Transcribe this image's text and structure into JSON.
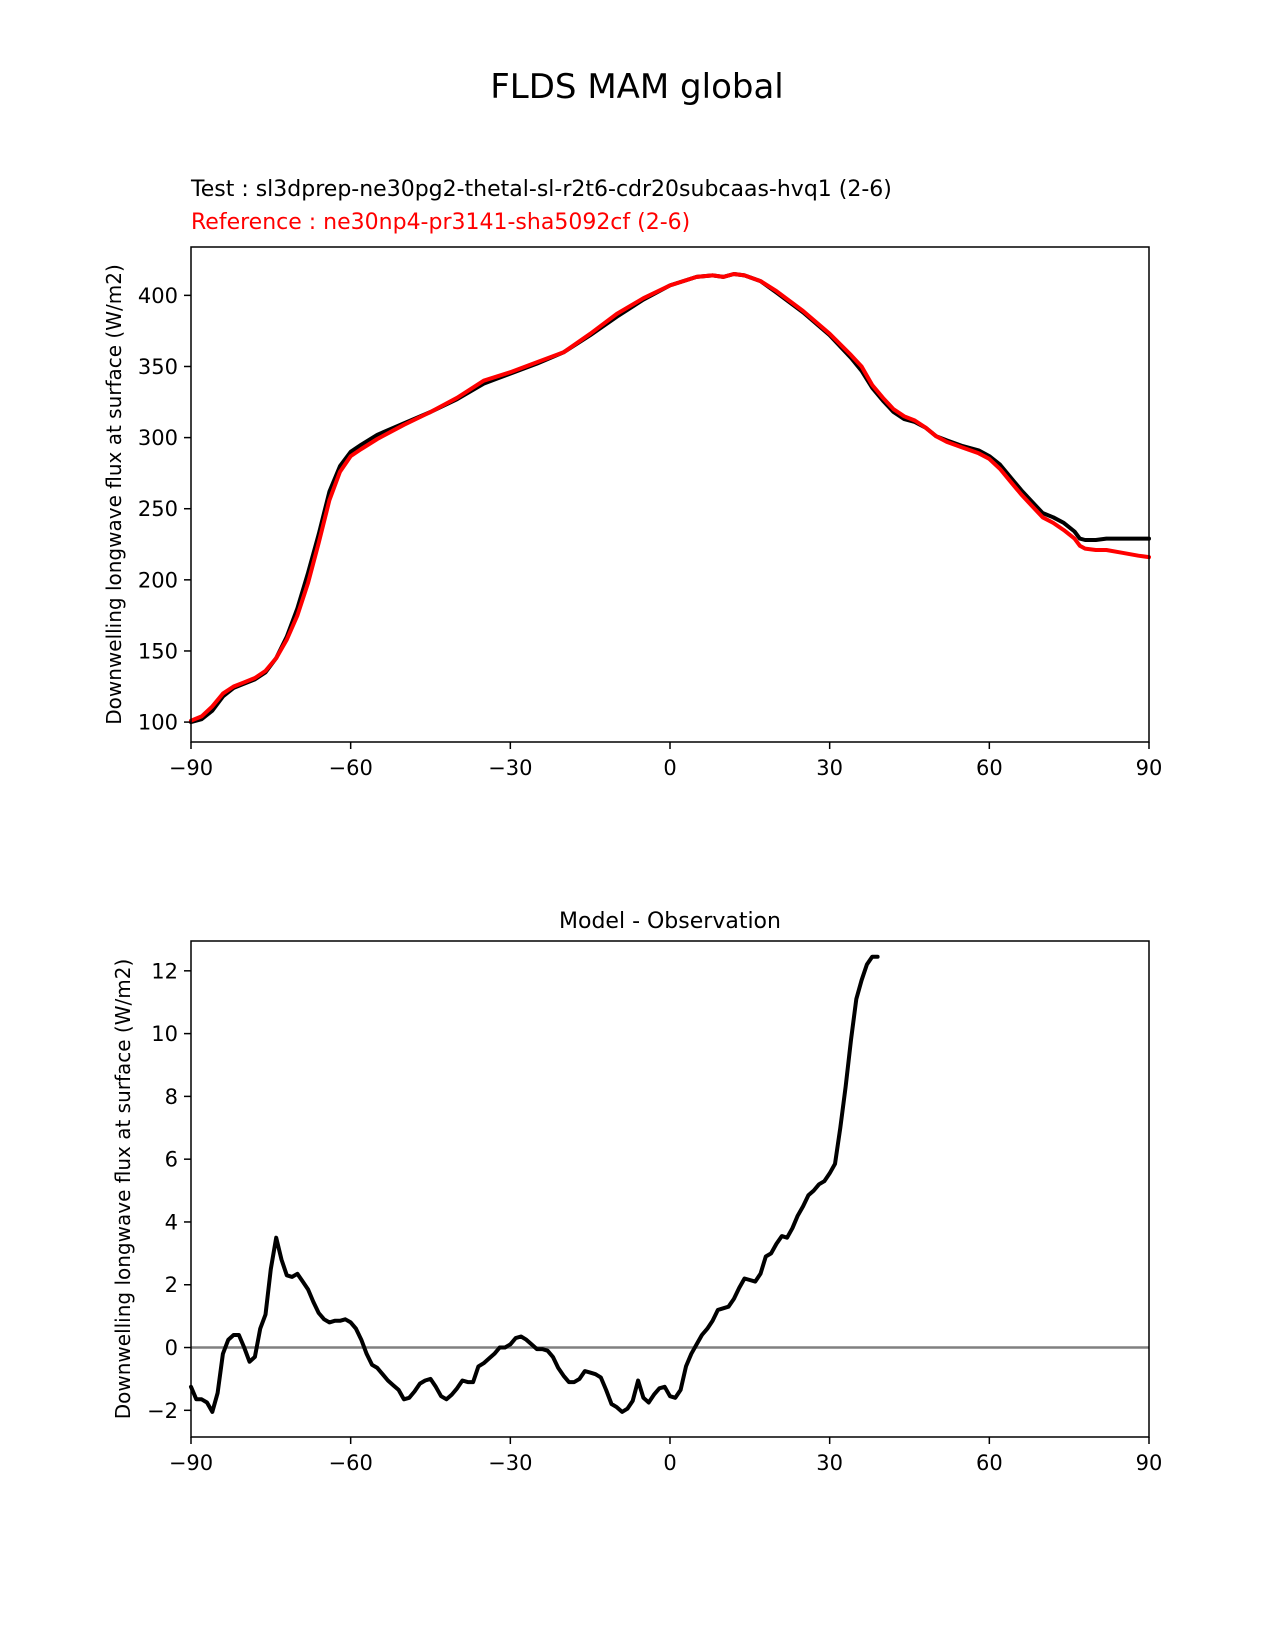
{
  "figure": {
    "title": "FLDS MAM global"
  },
  "chart_data": [
    {
      "type": "line",
      "title_lines": [
        {
          "text": "Test : sl3dprep-ne30pg2-thetal-sl-r2t6-cdr20subcaas-hvq1 (2-6)",
          "color": "#000000"
        },
        {
          "text": "Reference : ne30np4-pr3141-sha5092cf (2-6)",
          "color": "#ff0000"
        }
      ],
      "xlabel": "",
      "ylabel": "Downwelling longwave flux at surface (W/m2)",
      "xlim": [
        -90,
        90
      ],
      "ylim": [
        86,
        434
      ],
      "xticks": [
        -90,
        -60,
        -30,
        0,
        30,
        60,
        90
      ],
      "xtick_labels": [
        "−90",
        "−60",
        "−30",
        "0",
        "30",
        "60",
        "90"
      ],
      "yticks": [
        100,
        150,
        200,
        250,
        300,
        350,
        400
      ],
      "ytick_labels": [
        "100",
        "150",
        "200",
        "250",
        "300",
        "350",
        "400"
      ],
      "grid": false,
      "series": [
        {
          "color": "#000000",
          "points": [
            [
              -90,
              100
            ],
            [
              -88,
              102
            ],
            [
              -86,
              108
            ],
            [
              -84,
              118
            ],
            [
              -82,
              124
            ],
            [
              -80,
              127
            ],
            [
              -78,
              130
            ],
            [
              -76,
              135
            ],
            [
              -74,
              145
            ],
            [
              -72,
              160
            ],
            [
              -70,
              180
            ],
            [
              -68,
              205
            ],
            [
              -66,
              232
            ],
            [
              -64,
              262
            ],
            [
              -62,
              280
            ],
            [
              -60,
              290
            ],
            [
              -58,
              295
            ],
            [
              -55,
              302
            ],
            [
              -50,
              310
            ],
            [
              -45,
              318
            ],
            [
              -40,
              327
            ],
            [
              -35,
              338
            ],
            [
              -30,
              345
            ],
            [
              -25,
              352
            ],
            [
              -20,
              360
            ],
            [
              -15,
              372
            ],
            [
              -10,
              385
            ],
            [
              -5,
              397
            ],
            [
              0,
              407
            ],
            [
              5,
              413
            ],
            [
              8,
              414
            ],
            [
              10,
              413
            ],
            [
              12,
              415
            ],
            [
              14,
              414
            ],
            [
              17,
              410
            ],
            [
              20,
              402
            ],
            [
              25,
              388
            ],
            [
              30,
              372
            ],
            [
              34,
              356
            ],
            [
              36,
              347
            ],
            [
              38,
              335
            ],
            [
              40,
              326
            ],
            [
              42,
              318
            ],
            [
              44,
              313
            ],
            [
              46,
              311
            ],
            [
              48,
              307
            ],
            [
              50,
              301
            ],
            [
              52,
              298
            ],
            [
              55,
              294
            ],
            [
              58,
              291
            ],
            [
              60,
              287
            ],
            [
              62,
              281
            ],
            [
              64,
              272
            ],
            [
              66,
              263
            ],
            [
              68,
              255
            ],
            [
              70,
              247
            ],
            [
              72,
              244
            ],
            [
              74,
              240
            ],
            [
              76,
              234
            ],
            [
              77,
              229
            ],
            [
              78,
              228
            ],
            [
              80,
              228
            ],
            [
              82,
              229
            ],
            [
              85,
              229
            ],
            [
              88,
              229
            ],
            [
              90,
              229
            ]
          ]
        },
        {
          "color": "#ff0000",
          "points": [
            [
              -90,
              101
            ],
            [
              -88,
              104
            ],
            [
              -86,
              111
            ],
            [
              -84,
              120
            ],
            [
              -82,
              125
            ],
            [
              -80,
              128
            ],
            [
              -78,
              131
            ],
            [
              -76,
              136
            ],
            [
              -74,
              145
            ],
            [
              -72,
              158
            ],
            [
              -70,
              175
            ],
            [
              -68,
              198
            ],
            [
              -66,
              226
            ],
            [
              -64,
              256
            ],
            [
              -62,
              276
            ],
            [
              -60,
              287
            ],
            [
              -58,
              292
            ],
            [
              -55,
              299
            ],
            [
              -50,
              309
            ],
            [
              -45,
              318
            ],
            [
              -40,
              328
            ],
            [
              -35,
              340
            ],
            [
              -30,
              346
            ],
            [
              -25,
              353
            ],
            [
              -20,
              360
            ],
            [
              -15,
              373
            ],
            [
              -10,
              387
            ],
            [
              -5,
              398
            ],
            [
              0,
              407
            ],
            [
              5,
              413
            ],
            [
              8,
              414
            ],
            [
              10,
              413
            ],
            [
              12,
              415
            ],
            [
              14,
              414
            ],
            [
              17,
              410
            ],
            [
              20,
              403
            ],
            [
              25,
              389
            ],
            [
              30,
              373
            ],
            [
              34,
              358
            ],
            [
              36,
              350
            ],
            [
              38,
              337
            ],
            [
              40,
              328
            ],
            [
              42,
              320
            ],
            [
              44,
              315
            ],
            [
              46,
              312
            ],
            [
              48,
              307
            ],
            [
              50,
              301
            ],
            [
              52,
              297
            ],
            [
              55,
              293
            ],
            [
              58,
              289
            ],
            [
              60,
              285
            ],
            [
              62,
              278
            ],
            [
              64,
              269
            ],
            [
              66,
              260
            ],
            [
              68,
              252
            ],
            [
              70,
              244
            ],
            [
              72,
              240
            ],
            [
              74,
              235
            ],
            [
              76,
              229
            ],
            [
              77,
              224
            ],
            [
              78,
              222
            ],
            [
              80,
              221
            ],
            [
              82,
              221
            ],
            [
              85,
              219
            ],
            [
              88,
              217
            ],
            [
              90,
              216
            ]
          ]
        }
      ]
    },
    {
      "type": "line",
      "title": "Model - Observation",
      "xlabel": "",
      "ylabel": "Downwelling longwave flux at surface (W/m2)",
      "xlim": [
        -90,
        90
      ],
      "ylim": [
        -2.85,
        12.95
      ],
      "xticks": [
        -90,
        -60,
        -30,
        0,
        30,
        60,
        90
      ],
      "xtick_labels": [
        "−90",
        "−60",
        "−30",
        "0",
        "30",
        "60",
        "90"
      ],
      "yticks": [
        -2,
        0,
        2,
        4,
        6,
        8,
        10,
        12
      ],
      "ytick_labels": [
        "−2",
        "0",
        "2",
        "4",
        "6",
        "8",
        "10",
        "12"
      ],
      "grid": false,
      "zero_line_color": "#808080",
      "series": [
        {
          "color": "#000000",
          "points": [
            [
              -90,
              -1.25
            ],
            [
              -89,
              -1.65
            ],
            [
              -88,
              -1.65
            ],
            [
              -87,
              -1.75
            ],
            [
              -86,
              -2.05
            ],
            [
              -85,
              -1.45
            ],
            [
              -84,
              -0.2
            ],
            [
              -83,
              0.25
            ],
            [
              -82,
              0.4
            ],
            [
              -81,
              0.4
            ],
            [
              -80,
              0.0
            ],
            [
              -79,
              -0.45
            ],
            [
              -78,
              -0.3
            ],
            [
              -77,
              0.6
            ],
            [
              -76,
              1.05
            ],
            [
              -75,
              2.5
            ],
            [
              -74,
              3.5
            ],
            [
              -73,
              2.8
            ],
            [
              -72,
              2.3
            ],
            [
              -71,
              2.25
            ],
            [
              -70,
              2.35
            ],
            [
              -69,
              2.1
            ],
            [
              -68,
              1.85
            ],
            [
              -67,
              1.45
            ],
            [
              -66,
              1.1
            ],
            [
              -65,
              0.9
            ],
            [
              -64,
              0.8
            ],
            [
              -63,
              0.85
            ],
            [
              -62,
              0.85
            ],
            [
              -61,
              0.9
            ],
            [
              -60,
              0.8
            ],
            [
              -59,
              0.6
            ],
            [
              -58,
              0.25
            ],
            [
              -57,
              -0.2
            ],
            [
              -56,
              -0.55
            ],
            [
              -55,
              -0.65
            ],
            [
              -54,
              -0.85
            ],
            [
              -53,
              -1.05
            ],
            [
              -52,
              -1.2
            ],
            [
              -51,
              -1.35
            ],
            [
              -50,
              -1.65
            ],
            [
              -49,
              -1.6
            ],
            [
              -48,
              -1.4
            ],
            [
              -47,
              -1.15
            ],
            [
              -46,
              -1.05
            ],
            [
              -45,
              -1.0
            ],
            [
              -44,
              -1.25
            ],
            [
              -43,
              -1.55
            ],
            [
              -42,
              -1.65
            ],
            [
              -41,
              -1.5
            ],
            [
              -40,
              -1.3
            ],
            [
              -39,
              -1.05
            ],
            [
              -38,
              -1.1
            ],
            [
              -37,
              -1.1
            ],
            [
              -36,
              -0.6
            ],
            [
              -35,
              -0.5
            ],
            [
              -34,
              -0.35
            ],
            [
              -33,
              -0.2
            ],
            [
              -32,
              0.0
            ],
            [
              -31,
              0.0
            ],
            [
              -30,
              0.1
            ],
            [
              -29,
              0.3
            ],
            [
              -28,
              0.35
            ],
            [
              -27,
              0.25
            ],
            [
              -26,
              0.1
            ],
            [
              -25,
              -0.05
            ],
            [
              -24,
              -0.05
            ],
            [
              -23,
              -0.1
            ],
            [
              -22,
              -0.3
            ],
            [
              -21,
              -0.65
            ],
            [
              -20,
              -0.9
            ],
            [
              -19,
              -1.1
            ],
            [
              -18,
              -1.1
            ],
            [
              -17,
              -1.0
            ],
            [
              -16,
              -0.75
            ],
            [
              -15,
              -0.8
            ],
            [
              -14,
              -0.85
            ],
            [
              -13,
              -0.95
            ],
            [
              -12,
              -1.35
            ],
            [
              -11,
              -1.8
            ],
            [
              -10,
              -1.9
            ],
            [
              -9,
              -2.05
            ],
            [
              -8,
              -1.95
            ],
            [
              -7,
              -1.7
            ],
            [
              -6,
              -1.05
            ],
            [
              -5,
              -1.6
            ],
            [
              -4,
              -1.75
            ],
            [
              -3,
              -1.5
            ],
            [
              -2,
              -1.3
            ],
            [
              -1,
              -1.25
            ],
            [
              0,
              -1.55
            ],
            [
              1,
              -1.6
            ],
            [
              2,
              -1.35
            ],
            [
              3,
              -0.6
            ],
            [
              4,
              -0.2
            ],
            [
              5,
              0.1
            ],
            [
              6,
              0.4
            ],
            [
              7,
              0.6
            ],
            [
              8,
              0.85
            ],
            [
              9,
              1.2
            ],
            [
              10,
              1.25
            ],
            [
              11,
              1.3
            ],
            [
              12,
              1.55
            ],
            [
              13,
              1.9
            ],
            [
              14,
              2.2
            ],
            [
              15,
              2.15
            ],
            [
              16,
              2.1
            ],
            [
              17,
              2.35
            ],
            [
              18,
              2.9
            ],
            [
              19,
              3.0
            ],
            [
              20,
              3.3
            ],
            [
              21,
              3.55
            ],
            [
              22,
              3.5
            ],
            [
              23,
              3.8
            ],
            [
              24,
              4.2
            ],
            [
              25,
              4.5
            ],
            [
              26,
              4.85
            ],
            [
              27,
              5.0
            ],
            [
              28,
              5.2
            ],
            [
              29,
              5.3
            ],
            [
              30,
              5.55
            ],
            [
              31,
              5.85
            ],
            [
              32,
              7.0
            ],
            [
              33,
              8.3
            ],
            [
              34,
              9.8
            ],
            [
              35,
              11.1
            ],
            [
              36,
              11.7
            ],
            [
              37,
              12.2
            ],
            [
              38,
              12.45
            ],
            [
              39,
              12.45
            ]
          ]
        }
      ]
    }
  ]
}
